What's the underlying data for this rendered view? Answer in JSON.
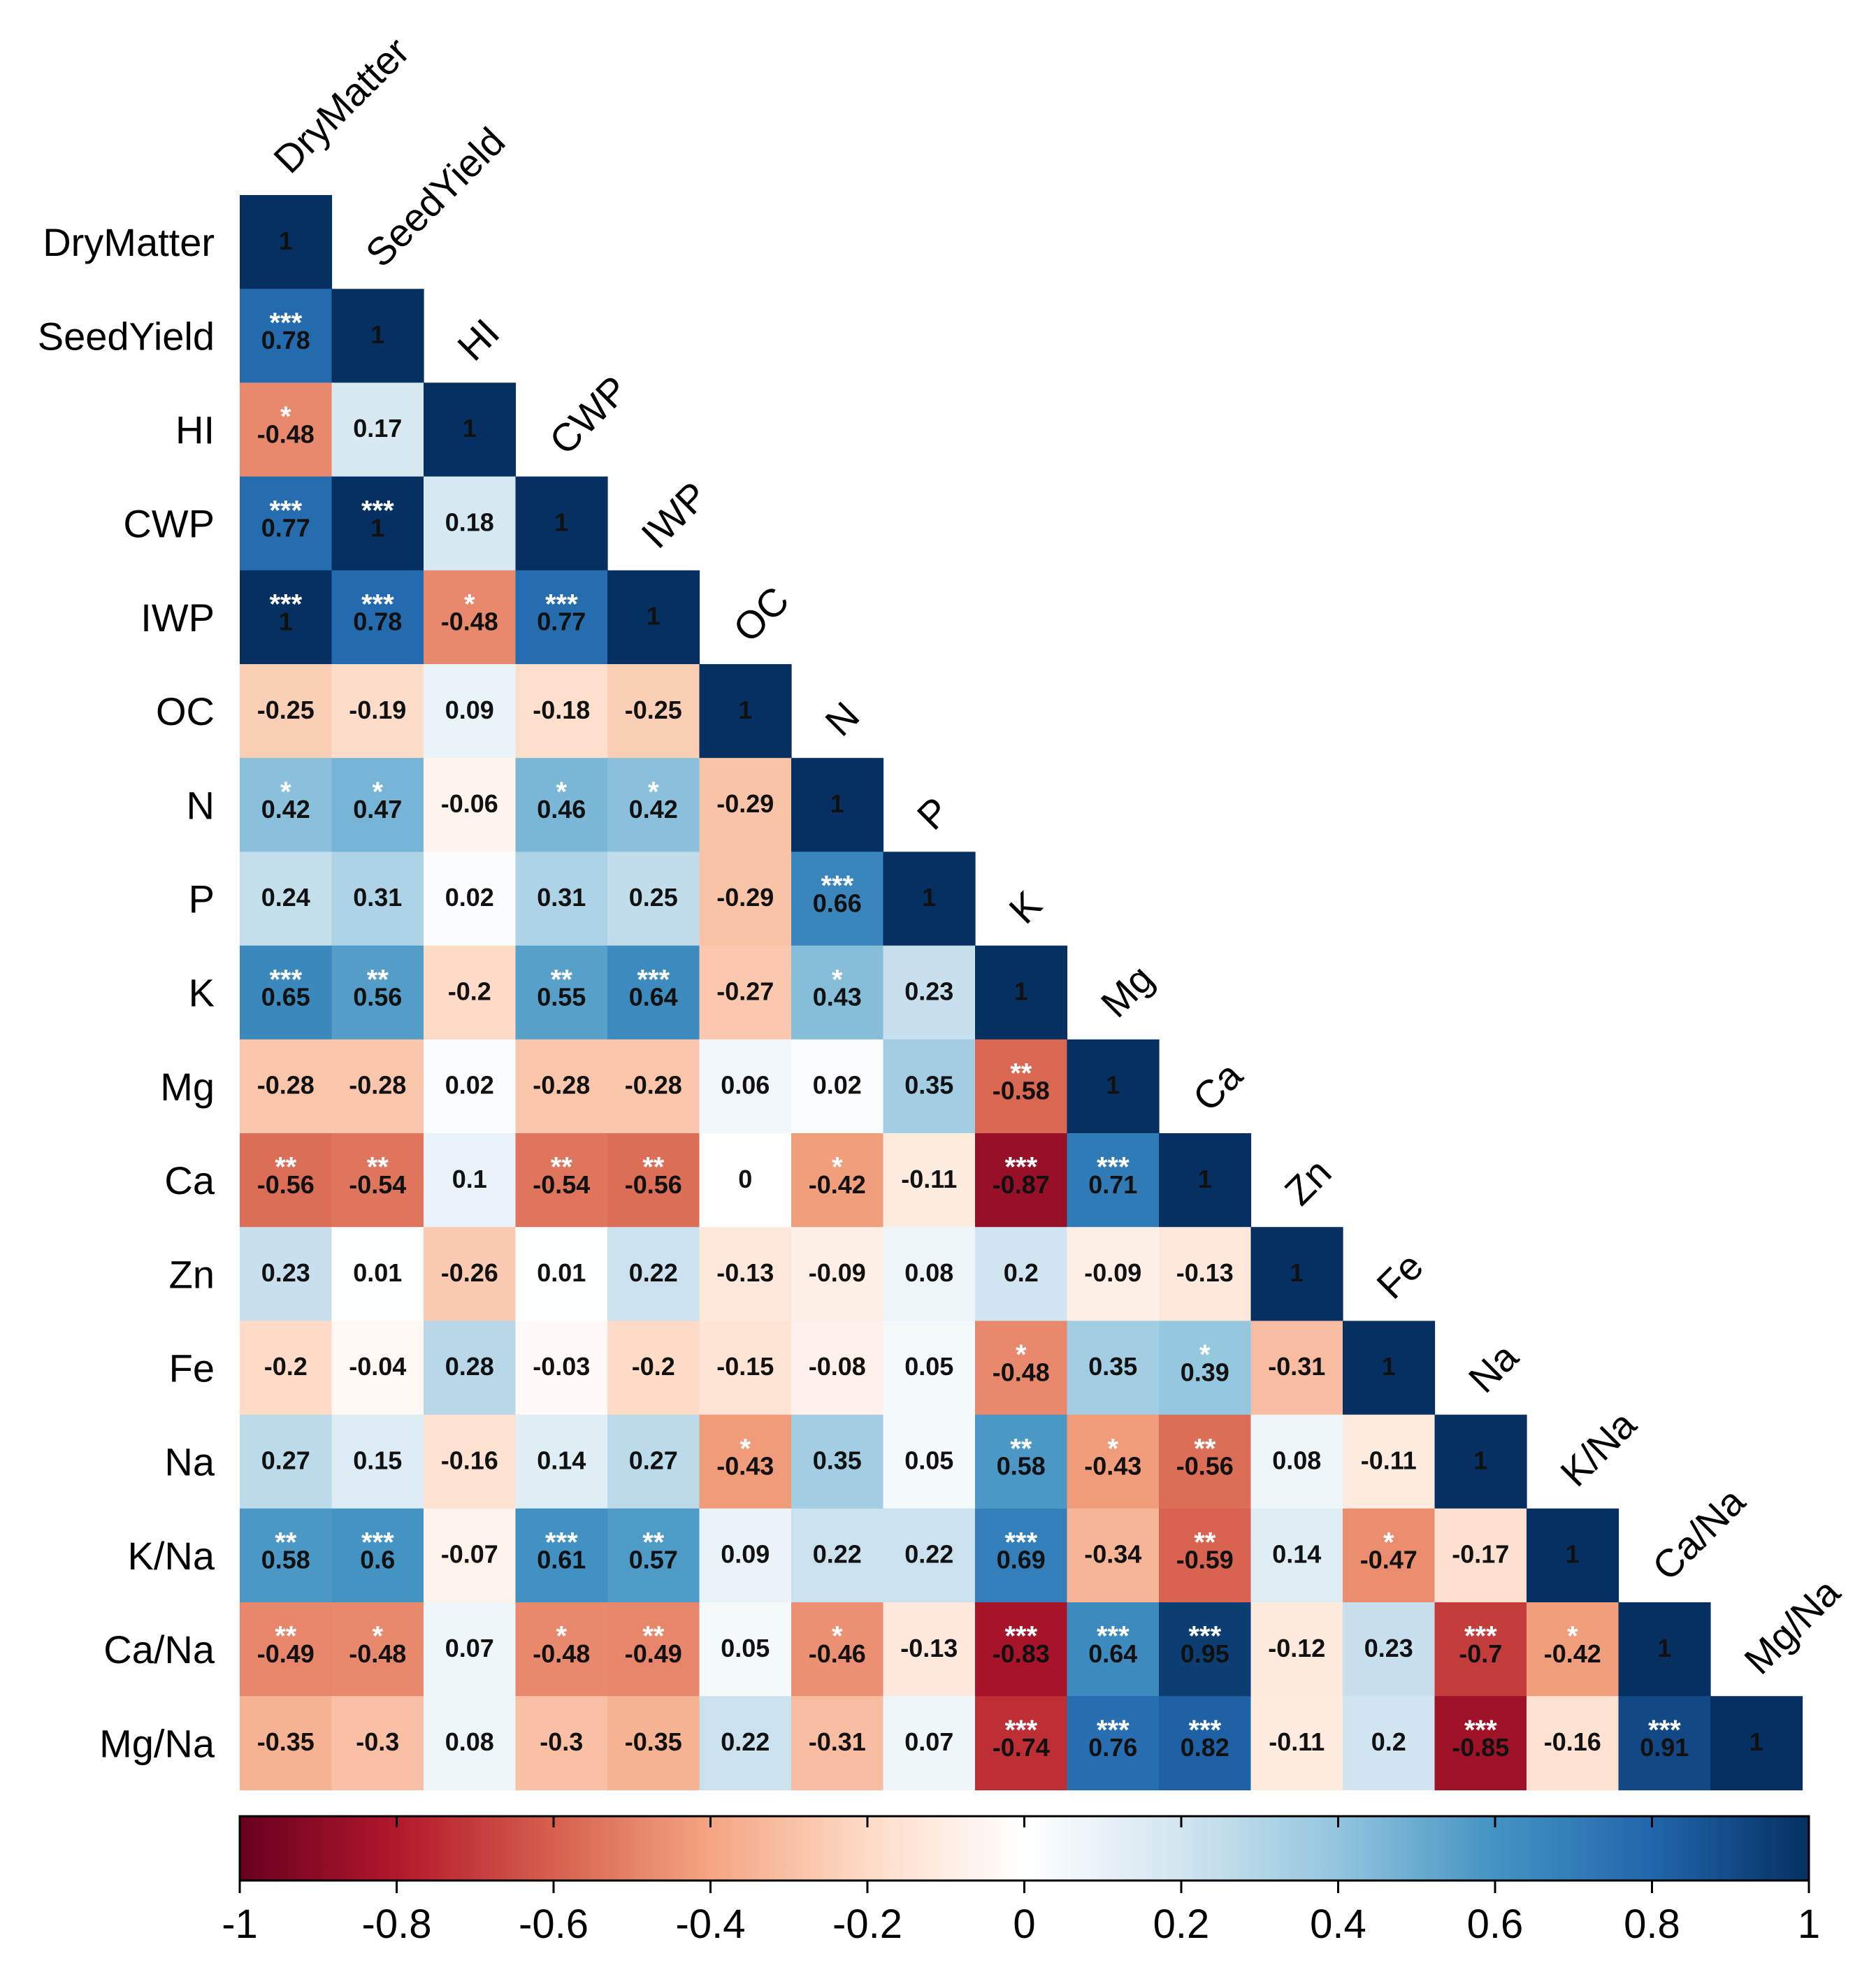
{
  "chart_data": {
    "type": "heatmap",
    "title": "",
    "variables": [
      "DryMatter",
      "SeedYield",
      "HI",
      "CWP",
      "IWP",
      "OC",
      "N",
      "P",
      "K",
      "Mg",
      "Ca",
      "Zn",
      "Fe",
      "Na",
      "K/Na",
      "Ca/Na",
      "Mg/Na"
    ],
    "matrix": [
      [
        1
      ],
      [
        0.78,
        1
      ],
      [
        -0.48,
        0.17,
        1
      ],
      [
        0.77,
        1,
        0.18,
        1
      ],
      [
        1,
        0.78,
        -0.48,
        0.77,
        1
      ],
      [
        -0.25,
        -0.19,
        0.09,
        -0.18,
        -0.25,
        1
      ],
      [
        0.42,
        0.47,
        -0.06,
        0.46,
        0.42,
        -0.29,
        1
      ],
      [
        0.24,
        0.31,
        0.02,
        0.31,
        0.25,
        -0.29,
        0.66,
        1
      ],
      [
        0.65,
        0.56,
        -0.2,
        0.55,
        0.64,
        -0.27,
        0.43,
        0.23,
        1
      ],
      [
        -0.28,
        -0.28,
        0.02,
        -0.28,
        -0.28,
        0.06,
        0.02,
        0.35,
        -0.58,
        1
      ],
      [
        -0.56,
        -0.54,
        0.1,
        -0.54,
        -0.56,
        0,
        -0.42,
        -0.11,
        -0.87,
        0.71,
        1
      ],
      [
        0.23,
        0.01,
        -0.26,
        0.01,
        0.22,
        -0.13,
        -0.09,
        0.08,
        0.2,
        -0.09,
        -0.13,
        1
      ],
      [
        -0.2,
        -0.04,
        0.28,
        -0.03,
        -0.2,
        -0.15,
        -0.08,
        0.05,
        -0.48,
        0.35,
        0.39,
        -0.31,
        1
      ],
      [
        0.27,
        0.15,
        -0.16,
        0.14,
        0.27,
        -0.43,
        0.35,
        0.05,
        0.58,
        -0.43,
        -0.56,
        0.08,
        -0.11,
        1
      ],
      [
        0.58,
        0.6,
        -0.07,
        0.61,
        0.57,
        0.09,
        0.22,
        0.22,
        0.69,
        -0.34,
        -0.59,
        0.14,
        -0.47,
        -0.17,
        1
      ],
      [
        -0.49,
        -0.48,
        0.07,
        -0.48,
        -0.49,
        0.05,
        -0.46,
        -0.13,
        -0.83,
        0.64,
        0.95,
        -0.12,
        0.23,
        -0.7,
        -0.42,
        1
      ],
      [
        -0.35,
        -0.3,
        0.08,
        -0.3,
        -0.35,
        0.22,
        -0.31,
        0.07,
        -0.74,
        0.76,
        0.82,
        -0.11,
        0.2,
        -0.85,
        -0.16,
        0.91,
        1
      ]
    ],
    "significance": [
      [
        ""
      ],
      [
        "***",
        ""
      ],
      [
        "*",
        "",
        ""
      ],
      [
        "***",
        "***",
        "",
        ""
      ],
      [
        "***",
        "***",
        "*",
        "***",
        ""
      ],
      [
        "",
        "",
        "",
        "",
        "",
        ""
      ],
      [
        "*",
        "*",
        "",
        "*",
        "*",
        "",
        ""
      ],
      [
        "",
        "",
        "",
        "",
        "",
        "",
        "***",
        ""
      ],
      [
        "***",
        "**",
        "",
        "**",
        "***",
        "",
        "*",
        "",
        ""
      ],
      [
        "",
        "",
        "",
        "",
        "",
        "",
        "",
        "",
        "**",
        ""
      ],
      [
        "**",
        "**",
        "",
        "**",
        "**",
        "",
        "*",
        "",
        "***",
        "***",
        ""
      ],
      [
        "",
        "",
        "",
        "",
        "",
        "",
        "",
        "",
        "",
        "",
        "",
        ""
      ],
      [
        "",
        "",
        "",
        "",
        "",
        "",
        "",
        "",
        "*",
        "",
        "*",
        "",
        ""
      ],
      [
        "",
        "",
        "",
        "",
        "",
        "*",
        "",
        "",
        "**",
        "*",
        "**",
        "",
        "",
        ""
      ],
      [
        "**",
        "***",
        "",
        "***",
        "**",
        "",
        "",
        "",
        "***",
        "",
        "**",
        "",
        "*",
        "",
        ""
      ],
      [
        "**",
        "*",
        "",
        "*",
        "**",
        "",
        "*",
        "",
        "***",
        "***",
        "***",
        "",
        "",
        "***",
        "*",
        ""
      ],
      [
        "",
        "",
        "",
        "",
        "",
        "",
        "",
        "",
        "***",
        "***",
        "***",
        "",
        "",
        "***",
        "",
        "***",
        ""
      ]
    ],
    "colorbar": {
      "range": [
        -1,
        1
      ],
      "ticks": [
        "-1",
        "-0.8",
        "-0.6",
        "-0.4",
        "-0.2",
        "0",
        "0.2",
        "0.4",
        "0.6",
        "0.8",
        "1"
      ],
      "placement": "bottom"
    },
    "colors": {
      "negative_end": "#67001f",
      "positive_end": "#053061",
      "middle": "#ffffff"
    }
  }
}
